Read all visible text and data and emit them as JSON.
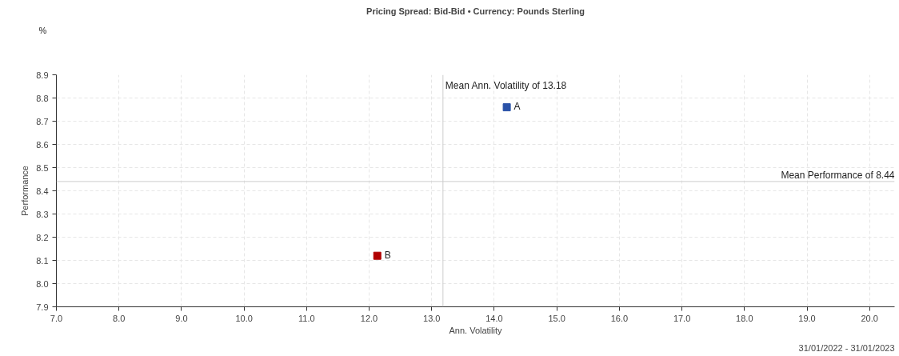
{
  "chart_data": {
    "type": "scatter",
    "title": "Pricing Spread: Bid-Bid • Currency: Pounds Sterling",
    "xlabel": "Ann. Volatility",
    "ylabel": "Performance",
    "annotations": [
      "%",
      "31/01/2022 - 31/01/2023"
    ],
    "series": [
      {
        "name": "A",
        "color": "#2a52a8",
        "x": [
          14.2
        ],
        "values": [
          8.76
        ]
      },
      {
        "name": "B",
        "color": "#b00000",
        "x": [
          12.13
        ],
        "values": [
          8.12
        ]
      }
    ],
    "marker": "square",
    "grid": true,
    "legend": false,
    "xlim": [
      7.0,
      20.4
    ],
    "xticks": [
      {
        "value": 7,
        "label": "7.0"
      },
      {
        "value": 8,
        "label": "8.0"
      },
      {
        "value": 9,
        "label": "9.0"
      },
      {
        "value": 10,
        "label": "10.0"
      },
      {
        "value": 11,
        "label": "11.0"
      },
      {
        "value": 12,
        "label": "12.0"
      },
      {
        "value": 13,
        "label": "13.0"
      },
      {
        "value": 14,
        "label": "14.0"
      },
      {
        "value": 15,
        "label": "15.0"
      },
      {
        "value": 16,
        "label": "16.0"
      },
      {
        "value": 17,
        "label": "17.0"
      },
      {
        "value": 18,
        "label": "18.0"
      },
      {
        "value": 19,
        "label": "19.0"
      },
      {
        "value": 20,
        "label": "20.0"
      }
    ],
    "ylim": [
      7.9,
      8.9
    ],
    "yticks": [
      7.9,
      {
        "value": 8,
        "label": "8.0"
      },
      8.1,
      8.2,
      8.3,
      8.4,
      8.5,
      8.6,
      8.7,
      8.8,
      8.9
    ],
    "ref_lines": [
      {
        "axis": "x",
        "value": 13.18,
        "label": "Mean Ann. Volatility of 13.18",
        "color": "#cccccc"
      },
      {
        "axis": "y",
        "value": 8.44,
        "label": "Mean Performance of 8.44",
        "color": "#cccccc"
      }
    ]
  }
}
